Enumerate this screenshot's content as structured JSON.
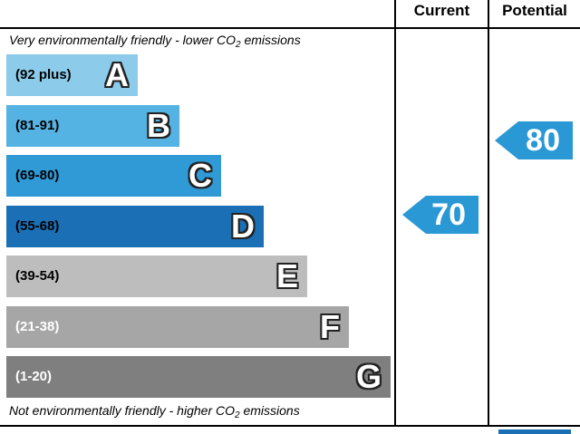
{
  "header": {
    "current_label": "Current",
    "potential_label": "Potential"
  },
  "captions": {
    "top_prefix": "Very environmentally friendly - lower C",
    "top_mid": "O",
    "top_sub": "2",
    "top_suffix": " emissions",
    "bottom_prefix": "Not environmentally friendly - higher C",
    "bottom_mid": "O",
    "bottom_sub": "2",
    "bottom_suffix": " emissions"
  },
  "chart_data": {
    "type": "bar",
    "bands": [
      {
        "letter": "A",
        "range": "(92 plus)",
        "min": 92,
        "max": 100,
        "color": "#8ccbea"
      },
      {
        "letter": "B",
        "range": "(81-91)",
        "min": 81,
        "max": 91,
        "color": "#55b3e3"
      },
      {
        "letter": "C",
        "range": "(69-80)",
        "min": 69,
        "max": 80,
        "color": "#2f9ad6"
      },
      {
        "letter": "D",
        "range": "(55-68)",
        "min": 55,
        "max": 68,
        "color": "#1a6fb5"
      },
      {
        "letter": "E",
        "range": "(39-54)",
        "min": 39,
        "max": 54,
        "color": "#bdbdbd"
      },
      {
        "letter": "F",
        "range": "(21-38)",
        "min": 21,
        "max": 38,
        "color": "#a6a6a6"
      },
      {
        "letter": "G",
        "range": "(1-20)",
        "min": 1,
        "max": 20,
        "color": "#7f7f7f"
      }
    ],
    "current": {
      "value": 70,
      "band": "C"
    },
    "potential": {
      "value": 80,
      "band": "C"
    },
    "arrow_color": "#2a98d4"
  }
}
